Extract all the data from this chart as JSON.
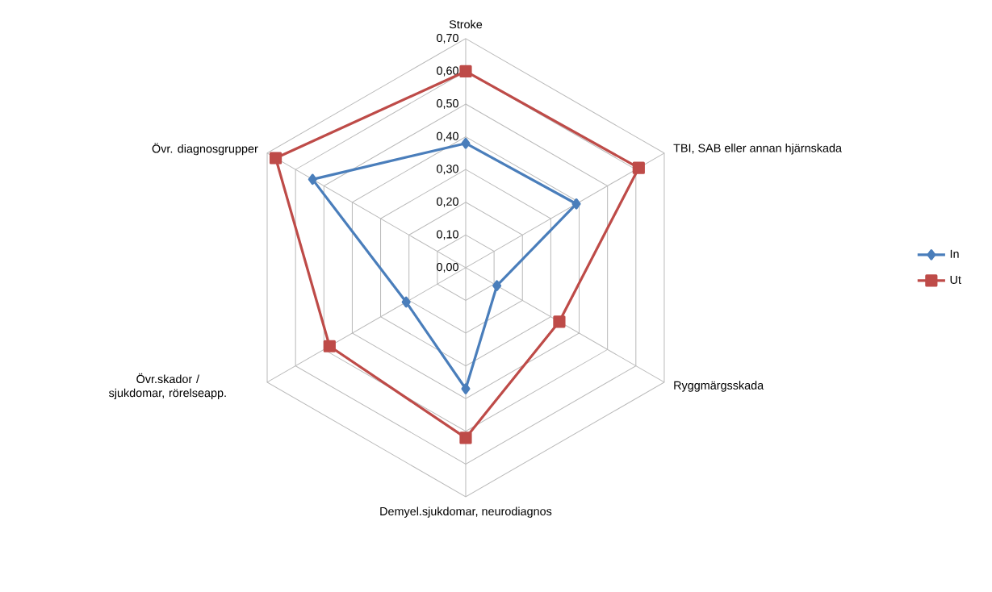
{
  "chart_data": {
    "type": "radar",
    "categories": [
      "Stroke",
      "TBI, SAB eller annan hjärnskada",
      "Ryggmärgsskada",
      "Demyel.sjukdomar, neurodiagnos",
      "Övr.skador / sjukdomar, rörelseapp.",
      "Övr. diagnosgrupper"
    ],
    "series": [
      {
        "name": "In",
        "color": "#4a7ebb",
        "marker": "diamond",
        "values": [
          0.38,
          0.39,
          0.11,
          0.37,
          0.21,
          0.54
        ]
      },
      {
        "name": "Ut",
        "color": "#be4b48",
        "marker": "square",
        "values": [
          0.6,
          0.61,
          0.33,
          0.52,
          0.48,
          0.67
        ]
      }
    ],
    "ylim": [
      0,
      0.7
    ],
    "yticks": [
      {
        "value": 0,
        "label": "0,00"
      },
      {
        "value": 0.1,
        "label": "0,10"
      },
      {
        "value": 0.2,
        "label": "0,20"
      },
      {
        "value": 0.3,
        "label": "0,30"
      },
      {
        "value": 0.4,
        "label": "0,40"
      },
      {
        "value": 0.5,
        "label": "0,50"
      },
      {
        "value": 0.6,
        "label": "0,60"
      },
      {
        "value": 0.7,
        "label": "0,70"
      }
    ],
    "grid": true,
    "legend": "right"
  }
}
